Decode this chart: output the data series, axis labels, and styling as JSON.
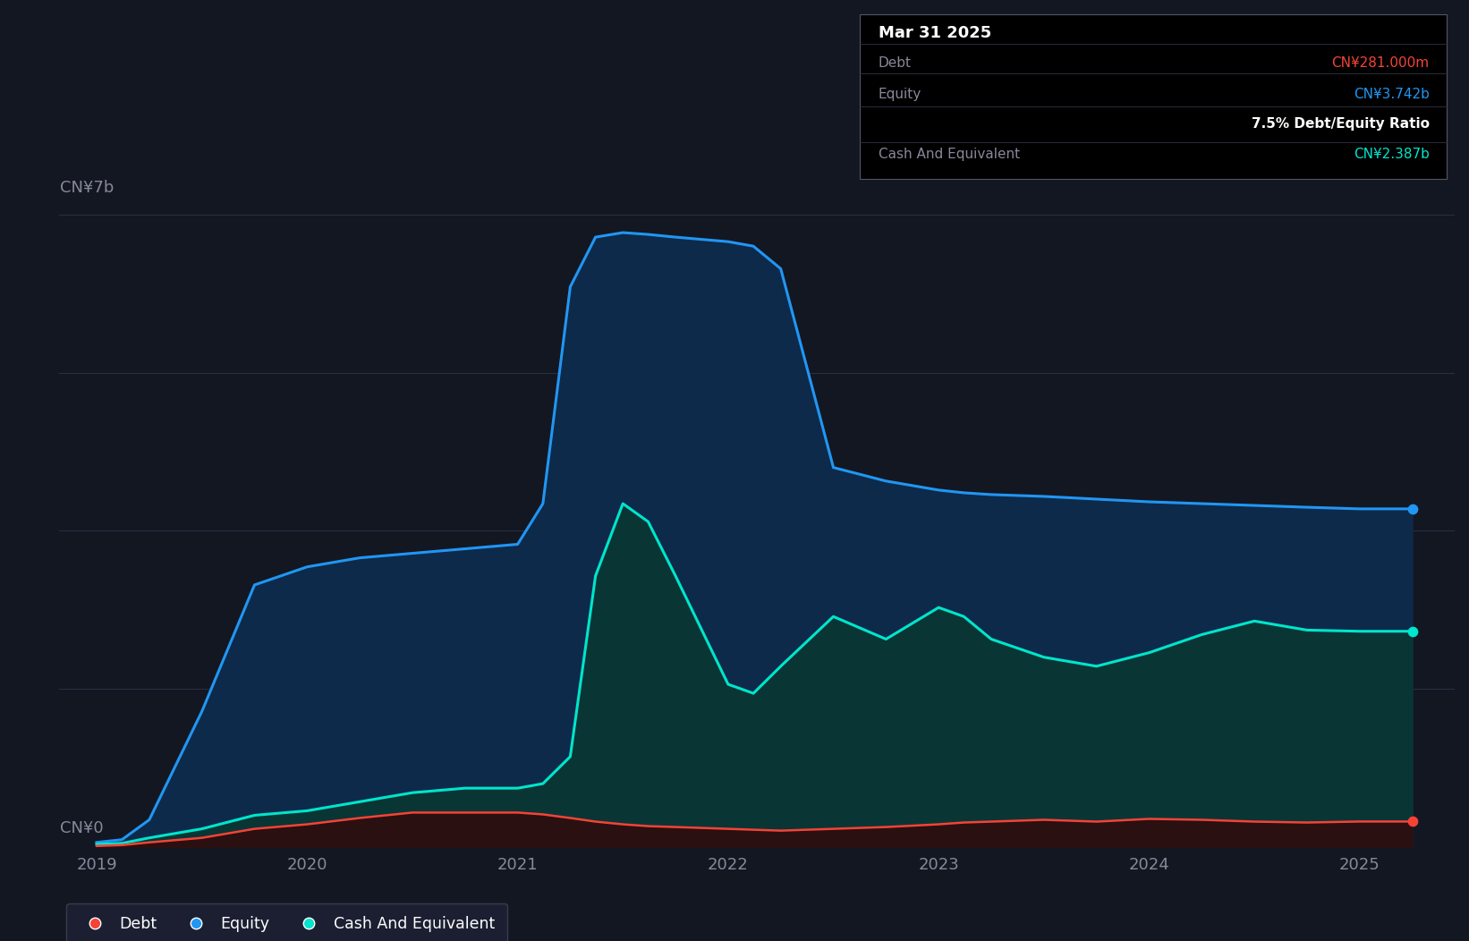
{
  "background_color": "#131722",
  "chart_bg_color": "#131722",
  "grid_color": "#2a2f45",
  "ylabel_top": "CN¥7b",
  "ylabel_bottom": "CN¥0",
  "x_ticks": [
    2019,
    2020,
    2021,
    2022,
    2023,
    2024,
    2025
  ],
  "ylim": [
    0,
    7.5
  ],
  "equity_color": "#2196f3",
  "equity_fill": "#0d2a4a",
  "cash_color": "#00e5cc",
  "cash_fill": "#0a3535",
  "debt_color": "#f44336",
  "debt_fill": "#2a1010",
  "tooltip_bg": "#000000",
  "tooltip_border": "#444455",
  "tooltip_title": "Mar 31 2025",
  "tooltip_debt_label": "Debt",
  "tooltip_debt_value": "CN¥281.000m",
  "tooltip_debt_color": "#f44336",
  "tooltip_equity_label": "Equity",
  "tooltip_equity_value": "CN¥3.742b",
  "tooltip_equity_color": "#2196f3",
  "tooltip_ratio": "7.5% Debt/Equity Ratio",
  "tooltip_cash_label": "Cash And Equivalent",
  "tooltip_cash_value": "CN¥2.387b",
  "tooltip_cash_color": "#00e5cc",
  "legend_debt_label": "Debt",
  "legend_equity_label": "Equity",
  "legend_cash_label": "Cash And Equivalent",
  "time_points": [
    2019.0,
    2019.12,
    2019.25,
    2019.5,
    2019.75,
    2020.0,
    2020.25,
    2020.5,
    2020.75,
    2021.0,
    2021.12,
    2021.25,
    2021.37,
    2021.5,
    2021.62,
    2021.75,
    2022.0,
    2022.12,
    2022.25,
    2022.5,
    2022.75,
    2023.0,
    2023.12,
    2023.25,
    2023.5,
    2023.75,
    2024.0,
    2024.25,
    2024.5,
    2024.75,
    2025.0,
    2025.25
  ],
  "equity_values": [
    0.05,
    0.08,
    0.3,
    1.5,
    2.9,
    3.1,
    3.2,
    3.25,
    3.3,
    3.35,
    3.8,
    6.2,
    6.75,
    6.8,
    6.78,
    6.75,
    6.7,
    6.65,
    6.4,
    4.2,
    4.05,
    3.95,
    3.92,
    3.9,
    3.88,
    3.85,
    3.82,
    3.8,
    3.78,
    3.76,
    3.742,
    3.742
  ],
  "cash_values": [
    0.03,
    0.04,
    0.1,
    0.2,
    0.35,
    0.4,
    0.5,
    0.6,
    0.65,
    0.65,
    0.7,
    1.0,
    3.0,
    3.8,
    3.6,
    3.0,
    1.8,
    1.7,
    2.0,
    2.55,
    2.3,
    2.65,
    2.55,
    2.3,
    2.1,
    2.0,
    2.15,
    2.35,
    2.5,
    2.4,
    2.387,
    2.387
  ],
  "debt_values": [
    0.01,
    0.02,
    0.05,
    0.1,
    0.2,
    0.25,
    0.32,
    0.38,
    0.38,
    0.38,
    0.36,
    0.32,
    0.28,
    0.25,
    0.23,
    0.22,
    0.2,
    0.19,
    0.18,
    0.2,
    0.22,
    0.25,
    0.27,
    0.28,
    0.3,
    0.28,
    0.31,
    0.3,
    0.28,
    0.27,
    0.281,
    0.281
  ],
  "grid_y_values": [
    0,
    1.75,
    3.5,
    5.25,
    7.0
  ]
}
